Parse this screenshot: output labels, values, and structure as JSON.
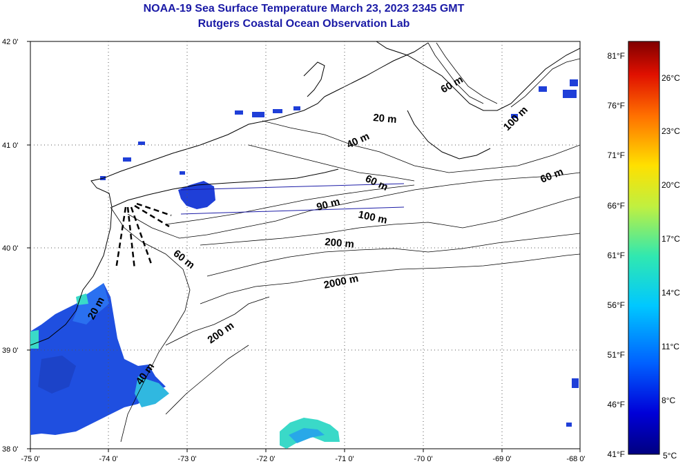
{
  "header": {
    "title": "NOAA-19 Sea Surface Temperature March 23, 2023 2345 GMT",
    "subtitle": "Rutgers Coastal Ocean Observation Lab"
  },
  "map": {
    "lon_labels": [
      "-75 0'",
      "-74 0'",
      "-73 0'",
      "-72 0'",
      "-71 0'",
      "-70 0'",
      "-69 0'",
      "-68 0'"
    ],
    "lat_labels": [
      "42 0'",
      "41 0'",
      "40 0'",
      "39 0'",
      "38 0'"
    ],
    "isobath_labels": [
      "20 m",
      "40 m",
      "60 m",
      "90 m",
      "100 m",
      "200 m",
      "2000 m",
      "60 m",
      "200 m",
      "40 m",
      "100 m",
      "60 m",
      "20 m",
      "60 m"
    ],
    "colors": {
      "land_outline": "#000000",
      "grid": "#555555",
      "cold_sst": "#1f4fe0",
      "cool_sst": "#28a8e8",
      "warm_patch": "#3ad9c8",
      "cloud_fill": "#ffffff"
    }
  },
  "colorbar": {
    "fahrenheit_labels": [
      "81°F",
      "76°F",
      "71°F",
      "66°F",
      "61°F",
      "56°F",
      "51°F",
      "46°F",
      "41°F"
    ],
    "celsius_labels": [
      "26°C",
      "23°C",
      "20°C",
      "17°C",
      "14°C",
      "11°C",
      "8°C",
      "5°C"
    ],
    "range_f": [
      41,
      81
    ],
    "range_c": [
      5,
      27
    ]
  }
}
